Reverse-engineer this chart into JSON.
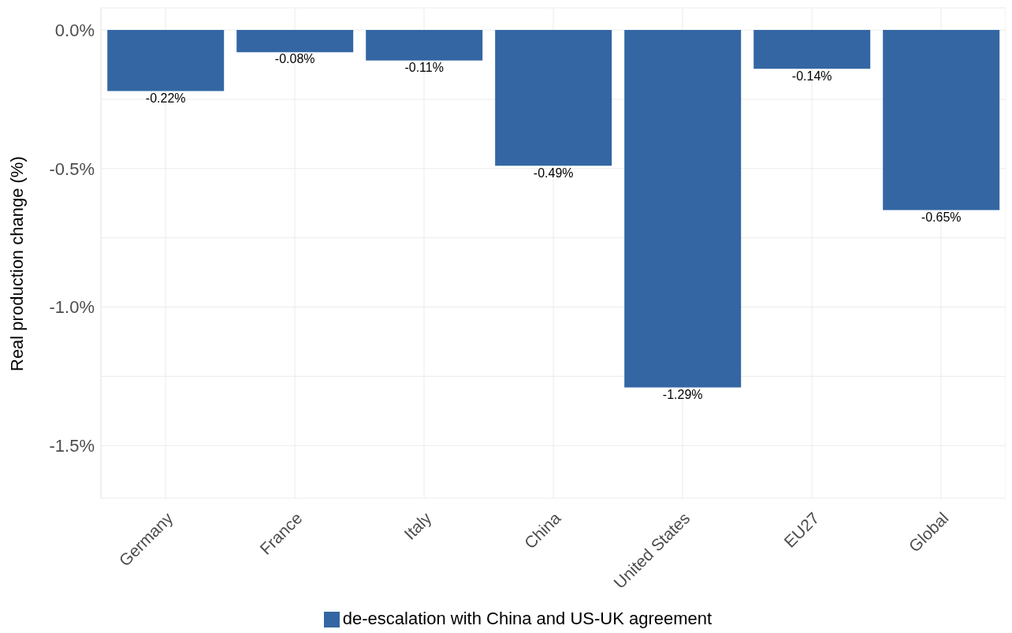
{
  "chart_data": {
    "type": "bar",
    "ylabel": "Real production change (%)",
    "categories": [
      "Germany",
      "France",
      "Italy",
      "China",
      "United States",
      "EU27",
      "Global"
    ],
    "series": [
      {
        "name": "de-escalation with China and US-UK agreement",
        "color": "#3366a3",
        "values": [
          -0.22,
          -0.08,
          -0.11,
          -0.49,
          -1.29,
          -0.14,
          -0.65
        ],
        "value_labels": [
          "-0.22%",
          "-0.08%",
          "-0.11%",
          "-0.49%",
          "-1.29%",
          "-0.14%",
          "-0.65%"
        ]
      }
    ],
    "ylim": [
      -1.69,
      0.08
    ],
    "yticks": [
      {
        "value": 0,
        "label": "0.0%"
      },
      {
        "value": -0.25,
        "label": null
      },
      {
        "value": -0.5,
        "label": "-0.5%"
      },
      {
        "value": -0.75,
        "label": null
      },
      {
        "value": -1,
        "label": "-1.0%"
      },
      {
        "value": -1.25,
        "label": null
      },
      {
        "value": -1.5,
        "label": "-1.5%"
      }
    ],
    "grid": true,
    "legend": "bottom"
  }
}
